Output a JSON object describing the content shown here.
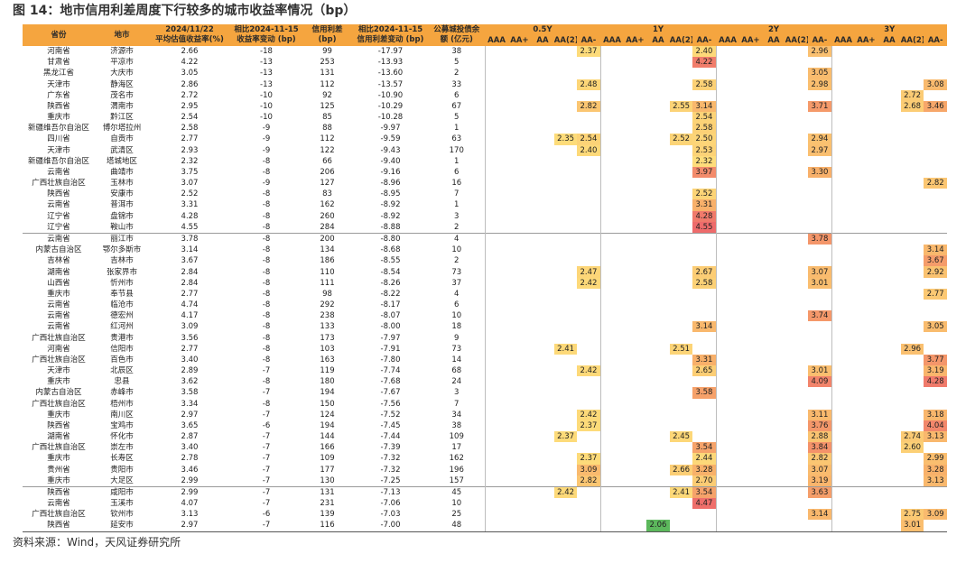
{
  "title": "图 14：地市信用利差周度下行较多的城市收益率情况（bp）",
  "table": {
    "columns": [
      [
        "省份"
      ],
      [
        "地市"
      ],
      [
        "2024/11/22",
        "平均估值收益率(%)"
      ],
      [
        "相比2024-11-15",
        "收益率变动 (bp)"
      ],
      [
        "信用利差",
        "(bp)"
      ],
      [
        "相比2024-11-15",
        "信用利差变动 (bp)"
      ],
      [
        "公募城投债余",
        "额 (亿元)"
      ]
    ],
    "tenors": [
      "0.5Y",
      "1Y",
      "2Y",
      "3Y"
    ],
    "ratings": [
      "AAA",
      "AA+",
      "AA",
      "AA(2)",
      "AA-"
    ],
    "rows": [
      [
        "河南省",
        "济源市",
        "2.66",
        "-18",
        "99",
        "-17.97",
        "38",
        null,
        null,
        null,
        null,
        "2.37",
        null,
        null,
        null,
        null,
        "2.40",
        null,
        null,
        null,
        null,
        "2.96",
        null,
        null,
        null,
        null,
        null
      ],
      [
        "甘肃省",
        "平凉市",
        "4.22",
        "-13",
        "253",
        "-13.93",
        "5",
        null,
        null,
        null,
        null,
        null,
        null,
        null,
        null,
        null,
        "4.22",
        null,
        null,
        null,
        null,
        null,
        null,
        null,
        null,
        null,
        null
      ],
      [
        "黑龙江省",
        "大庆市",
        "3.05",
        "-13",
        "131",
        "-13.60",
        "2",
        null,
        null,
        null,
        null,
        null,
        null,
        null,
        null,
        null,
        null,
        null,
        null,
        null,
        null,
        "3.05",
        null,
        null,
        null,
        null,
        null
      ],
      [
        "天津市",
        "静海区",
        "2.86",
        "-13",
        "112",
        "-13.57",
        "33",
        null,
        null,
        null,
        null,
        "2.48",
        null,
        null,
        null,
        null,
        "2.58",
        null,
        null,
        null,
        null,
        "2.98",
        null,
        null,
        null,
        null,
        "3.08"
      ],
      [
        "广东省",
        "茂名市",
        "2.72",
        "-10",
        "92",
        "-10.90",
        "6",
        null,
        null,
        null,
        null,
        null,
        null,
        null,
        null,
        null,
        null,
        null,
        null,
        null,
        null,
        null,
        null,
        null,
        null,
        "2.72",
        null
      ],
      [
        "陕西省",
        "渭南市",
        "2.95",
        "-10",
        "125",
        "-10.29",
        "67",
        null,
        null,
        null,
        null,
        "2.82",
        null,
        null,
        null,
        "2.55",
        "3.14",
        null,
        null,
        null,
        null,
        "3.71",
        null,
        null,
        null,
        "2.68",
        "3.46"
      ],
      [
        "重庆市",
        "黔江区",
        "2.54",
        "-10",
        "85",
        "-10.28",
        "5",
        null,
        null,
        null,
        null,
        null,
        null,
        null,
        null,
        null,
        "2.54",
        null,
        null,
        null,
        null,
        null,
        null,
        null,
        null,
        null,
        null
      ],
      [
        "新疆维吾尔自治区",
        "博尔塔拉州",
        "2.58",
        "-9",
        "88",
        "-9.97",
        "1",
        null,
        null,
        null,
        null,
        null,
        null,
        null,
        null,
        null,
        "2.58",
        null,
        null,
        null,
        null,
        null,
        null,
        null,
        null,
        null,
        null
      ],
      [
        "四川省",
        "自贡市",
        "2.77",
        "-9",
        "112",
        "-9.59",
        "63",
        null,
        null,
        null,
        "2.35",
        "2.54",
        null,
        null,
        null,
        "2.52",
        "2.50",
        null,
        null,
        null,
        null,
        "2.94",
        null,
        null,
        null,
        null,
        null
      ],
      [
        "天津市",
        "武清区",
        "2.93",
        "-9",
        "122",
        "-9.43",
        "170",
        null,
        null,
        null,
        null,
        "2.40",
        null,
        null,
        null,
        null,
        "2.53",
        null,
        null,
        null,
        null,
        "2.97",
        null,
        null,
        null,
        null,
        null
      ],
      [
        "新疆维吾尔自治区",
        "塔城地区",
        "2.32",
        "-8",
        "66",
        "-9.40",
        "1",
        null,
        null,
        null,
        null,
        null,
        null,
        null,
        null,
        null,
        "2.32",
        null,
        null,
        null,
        null,
        null,
        null,
        null,
        null,
        null,
        null
      ],
      [
        "云南省",
        "曲靖市",
        "3.75",
        "-8",
        "206",
        "-9.16",
        "6",
        null,
        null,
        null,
        null,
        null,
        null,
        null,
        null,
        null,
        "3.97",
        null,
        null,
        null,
        null,
        "3.30",
        null,
        null,
        null,
        null,
        null
      ],
      [
        "广西壮族自治区",
        "玉林市",
        "3.07",
        "-9",
        "127",
        "-8.96",
        "16",
        null,
        null,
        null,
        null,
        null,
        null,
        null,
        null,
        null,
        null,
        null,
        null,
        null,
        null,
        null,
        null,
        null,
        null,
        null,
        "2.82"
      ],
      [
        "陕西省",
        "安康市",
        "2.52",
        "-8",
        "83",
        "-8.95",
        "7",
        null,
        null,
        null,
        null,
        null,
        null,
        null,
        null,
        null,
        "2.52",
        null,
        null,
        null,
        null,
        null,
        null,
        null,
        null,
        null,
        null
      ],
      [
        "云南省",
        "普洱市",
        "3.31",
        "-8",
        "162",
        "-8.92",
        "1",
        null,
        null,
        null,
        null,
        null,
        null,
        null,
        null,
        null,
        "3.31",
        null,
        null,
        null,
        null,
        null,
        null,
        null,
        null,
        null,
        null
      ],
      [
        "辽宁省",
        "盘锦市",
        "4.28",
        "-8",
        "260",
        "-8.92",
        "3",
        null,
        null,
        null,
        null,
        null,
        null,
        null,
        null,
        null,
        "4.28",
        null,
        null,
        null,
        null,
        null,
        null,
        null,
        null,
        null,
        null
      ],
      [
        "辽宁省",
        "鞍山市",
        "4.55",
        "-8",
        "284",
        "-8.88",
        "2",
        null,
        null,
        null,
        null,
        null,
        null,
        null,
        null,
        null,
        "4.55",
        null,
        null,
        null,
        null,
        null,
        null,
        null,
        null,
        null,
        null
      ],
      [
        "云南省",
        "丽江市",
        "3.78",
        "-8",
        "200",
        "-8.80",
        "4",
        null,
        null,
        null,
        null,
        null,
        null,
        null,
        null,
        null,
        null,
        null,
        null,
        null,
        null,
        "3.78",
        null,
        null,
        null,
        null,
        null
      ],
      [
        "内蒙古自治区",
        "鄂尔多斯市",
        "3.14",
        "-8",
        "134",
        "-8.68",
        "10",
        null,
        null,
        null,
        null,
        null,
        null,
        null,
        null,
        null,
        null,
        null,
        null,
        null,
        null,
        null,
        null,
        null,
        null,
        null,
        "3.14"
      ],
      [
        "吉林省",
        "吉林市",
        "3.67",
        "-8",
        "186",
        "-8.55",
        "2",
        null,
        null,
        null,
        null,
        null,
        null,
        null,
        null,
        null,
        null,
        null,
        null,
        null,
        null,
        null,
        null,
        null,
        null,
        null,
        "3.67"
      ],
      [
        "湖南省",
        "张家界市",
        "2.84",
        "-8",
        "110",
        "-8.54",
        "73",
        null,
        null,
        null,
        null,
        "2.47",
        null,
        null,
        null,
        null,
        "2.67",
        null,
        null,
        null,
        null,
        "3.07",
        null,
        null,
        null,
        null,
        "2.92"
      ],
      [
        "山西省",
        "忻州市",
        "2.84",
        "-8",
        "111",
        "-8.26",
        "37",
        null,
        null,
        null,
        null,
        "2.42",
        null,
        null,
        null,
        null,
        "2.58",
        null,
        null,
        null,
        null,
        "3.01",
        null,
        null,
        null,
        null,
        null
      ],
      [
        "重庆市",
        "奉节县",
        "2.77",
        "-8",
        "98",
        "-8.22",
        "4",
        null,
        null,
        null,
        null,
        null,
        null,
        null,
        null,
        null,
        null,
        null,
        null,
        null,
        null,
        null,
        null,
        null,
        null,
        null,
        "2.77"
      ],
      [
        "云南省",
        "临沧市",
        "4.74",
        "-8",
        "292",
        "-8.17",
        "6",
        null,
        null,
        null,
        null,
        null,
        null,
        null,
        null,
        null,
        null,
        null,
        null,
        null,
        null,
        null,
        null,
        null,
        null,
        null,
        null
      ],
      [
        "云南省",
        "德宏州",
        "4.17",
        "-8",
        "238",
        "-8.07",
        "10",
        null,
        null,
        null,
        null,
        null,
        null,
        null,
        null,
        null,
        null,
        null,
        null,
        null,
        null,
        "3.74",
        null,
        null,
        null,
        null,
        null
      ],
      [
        "云南省",
        "红河州",
        "3.09",
        "-8",
        "133",
        "-8.00",
        "18",
        null,
        null,
        null,
        null,
        null,
        null,
        null,
        null,
        null,
        "3.14",
        null,
        null,
        null,
        null,
        null,
        null,
        null,
        null,
        null,
        "3.05"
      ],
      [
        "广西壮族自治区",
        "贵港市",
        "3.56",
        "-8",
        "173",
        "-7.97",
        "9",
        null,
        null,
        null,
        null,
        null,
        null,
        null,
        null,
        null,
        null,
        null,
        null,
        null,
        null,
        null,
        null,
        null,
        null,
        null,
        null
      ],
      [
        "河南省",
        "信阳市",
        "2.77",
        "-8",
        "103",
        "-7.91",
        "73",
        null,
        null,
        null,
        "2.41",
        null,
        null,
        null,
        null,
        "2.51",
        null,
        null,
        null,
        null,
        null,
        null,
        null,
        null,
        null,
        "2.96",
        null
      ],
      [
        "广西壮族自治区",
        "百色市",
        "3.40",
        "-8",
        "163",
        "-7.80",
        "14",
        null,
        null,
        null,
        null,
        null,
        null,
        null,
        null,
        null,
        "3.31",
        null,
        null,
        null,
        null,
        null,
        null,
        null,
        null,
        null,
        "3.77"
      ],
      [
        "天津市",
        "北辰区",
        "2.89",
        "-7",
        "119",
        "-7.74",
        "68",
        null,
        null,
        null,
        null,
        "2.42",
        null,
        null,
        null,
        null,
        "2.65",
        null,
        null,
        null,
        null,
        "3.01",
        null,
        null,
        null,
        null,
        "3.19"
      ],
      [
        "重庆市",
        "忠县",
        "3.62",
        "-8",
        "180",
        "-7.68",
        "24",
        null,
        null,
        null,
        null,
        null,
        null,
        null,
        null,
        null,
        null,
        null,
        null,
        null,
        null,
        "4.09",
        null,
        null,
        null,
        null,
        "4.28"
      ],
      [
        "内蒙古自治区",
        "赤峰市",
        "3.58",
        "-7",
        "194",
        "-7.67",
        "3",
        null,
        null,
        null,
        null,
        null,
        null,
        null,
        null,
        null,
        "3.58",
        null,
        null,
        null,
        null,
        null,
        null,
        null,
        null,
        null,
        null
      ],
      [
        "广西壮族自治区",
        "梧州市",
        "3.34",
        "-8",
        "150",
        "-7.56",
        "7",
        null,
        null,
        null,
        null,
        null,
        null,
        null,
        null,
        null,
        null,
        null,
        null,
        null,
        null,
        null,
        null,
        null,
        null,
        null,
        null
      ],
      [
        "重庆市",
        "南川区",
        "2.97",
        "-7",
        "124",
        "-7.52",
        "34",
        null,
        null,
        null,
        null,
        "2.42",
        null,
        null,
        null,
        null,
        null,
        null,
        null,
        null,
        null,
        "3.11",
        null,
        null,
        null,
        null,
        "3.18"
      ],
      [
        "陕西省",
        "宝鸡市",
        "3.65",
        "-6",
        "194",
        "-7.45",
        "38",
        null,
        null,
        null,
        null,
        "2.37",
        null,
        null,
        null,
        null,
        null,
        null,
        null,
        null,
        null,
        "3.76",
        null,
        null,
        null,
        null,
        "4.04"
      ],
      [
        "湖南省",
        "怀化市",
        "2.87",
        "-7",
        "144",
        "-7.44",
        "109",
        null,
        null,
        null,
        "2.37",
        null,
        null,
        null,
        null,
        "2.45",
        null,
        null,
        null,
        null,
        null,
        "2.88",
        null,
        null,
        null,
        "2.74",
        "3.13"
      ],
      [
        "广西壮族自治区",
        "崇左市",
        "3.40",
        "-7",
        "166",
        "-7.39",
        "17",
        null,
        null,
        null,
        null,
        null,
        null,
        null,
        null,
        null,
        "3.54",
        null,
        null,
        null,
        null,
        "3.84",
        null,
        null,
        null,
        "2.60",
        null
      ],
      [
        "重庆市",
        "长寿区",
        "2.78",
        "-7",
        "109",
        "-7.32",
        "162",
        null,
        null,
        null,
        null,
        "2.37",
        null,
        null,
        null,
        null,
        "2.44",
        null,
        null,
        null,
        null,
        "2.82",
        null,
        null,
        null,
        null,
        "2.99"
      ],
      [
        "贵州省",
        "贵阳市",
        "3.46",
        "-7",
        "177",
        "-7.32",
        "196",
        null,
        null,
        null,
        null,
        "3.09",
        null,
        null,
        null,
        "2.66",
        "3.28",
        null,
        null,
        null,
        null,
        "3.07",
        null,
        null,
        null,
        null,
        "3.28"
      ],
      [
        "重庆市",
        "大足区",
        "2.99",
        "-7",
        "130",
        "-7.25",
        "157",
        null,
        null,
        null,
        null,
        "2.82",
        null,
        null,
        null,
        null,
        "2.70",
        null,
        null,
        null,
        null,
        "3.19",
        null,
        null,
        null,
        null,
        "3.13"
      ],
      [
        "陕西省",
        "咸阳市",
        "2.99",
        "-7",
        "131",
        "-7.13",
        "45",
        null,
        null,
        null,
        "2.42",
        null,
        null,
        null,
        null,
        "2.41",
        "3.54",
        null,
        null,
        null,
        null,
        "3.63",
        null,
        null,
        null,
        null,
        null
      ],
      [
        "云南省",
        "玉溪市",
        "4.07",
        "-7",
        "231",
        "-7.06",
        "10",
        null,
        null,
        null,
        null,
        null,
        null,
        null,
        null,
        null,
        "4.47",
        null,
        null,
        null,
        null,
        null,
        null,
        null,
        null,
        null,
        null
      ],
      [
        "广西壮族自治区",
        "钦州市",
        "3.13",
        "-6",
        "139",
        "-7.03",
        "25",
        null,
        null,
        null,
        null,
        null,
        null,
        null,
        null,
        null,
        null,
        null,
        null,
        null,
        null,
        "3.14",
        null,
        null,
        null,
        "2.75",
        "3.09"
      ],
      [
        "陕西省",
        "延安市",
        "2.97",
        "-7",
        "116",
        "-7.00",
        "48",
        null,
        null,
        null,
        null,
        null,
        null,
        null,
        "2.06",
        null,
        null,
        null,
        null,
        null,
        null,
        null,
        null,
        null,
        null,
        "3.01",
        null
      ]
    ]
  },
  "source": "资料来源：Wind，天风证券研究所"
}
